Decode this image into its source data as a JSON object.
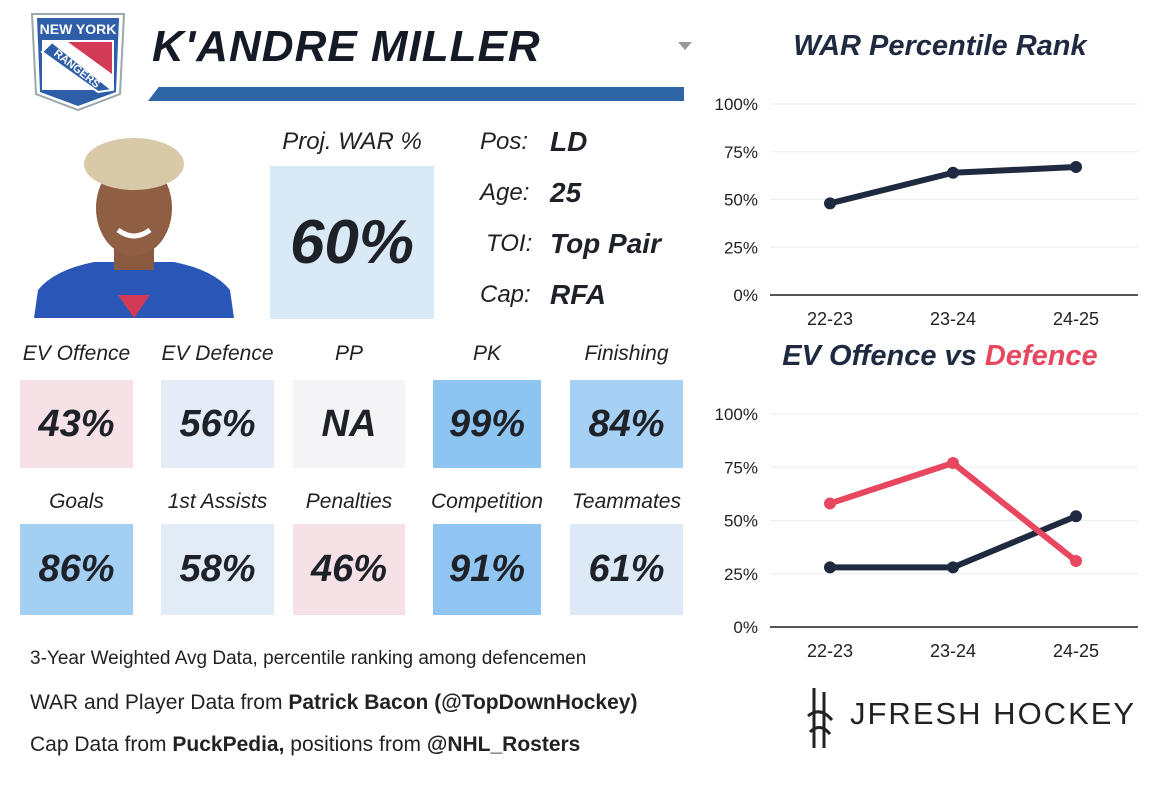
{
  "team_logo": {
    "line1": "NEW YORK",
    "line2": "RANGERS"
  },
  "player": {
    "name": "K'ANDRE MILLER"
  },
  "proj_war": {
    "label": "Proj. WAR %",
    "value": "60%"
  },
  "info": [
    {
      "label": "Pos:",
      "value": "LD"
    },
    {
      "label": "Age:",
      "value": "25"
    },
    {
      "label": "TOI:",
      "value": "Top Pair"
    },
    {
      "label": "Cap:",
      "value": "RFA"
    }
  ],
  "tiles": [
    {
      "label": "EV Offence",
      "value": "43%",
      "color": "#f6e2e6"
    },
    {
      "label": "EV Defence",
      "value": "56%",
      "color": "#e4edf7"
    },
    {
      "label": "PP",
      "value": "NA",
      "color": "#f4f4f6"
    },
    {
      "label": "PK",
      "value": "99%",
      "color": "#8ec4f0"
    },
    {
      "label": "Finishing",
      "value": "84%",
      "color": "#a7d1f4"
    },
    {
      "label": "Goals",
      "value": "86%",
      "color": "#a3cff3"
    },
    {
      "label": "1st Assists",
      "value": "58%",
      "color": "#e2ecf7"
    },
    {
      "label": "Penalties",
      "value": "46%",
      "color": "#f6e2e6"
    },
    {
      "label": "Competition",
      "value": "91%",
      "color": "#8fc5f0"
    },
    {
      "label": "Teammates",
      "value": "61%",
      "color": "#dde9f6"
    }
  ],
  "footer": {
    "line1": "3-Year Weighted Avg Data, percentile ranking among defencemen",
    "line2_pre": "WAR and Player Data from ",
    "line2_bold": "Patrick Bacon (@TopDownHockey)",
    "line3_pre": "Cap Data from ",
    "line3_bold": "PuckPedia,",
    "line3_mid": " positions from ",
    "line3_bold2": "@NHL_Rosters"
  },
  "brand": "JFRESH HOCKEY",
  "chart_data": [
    {
      "type": "line",
      "title": "WAR Percentile Rank",
      "categories": [
        "22-23",
        "23-24",
        "24-25"
      ],
      "series": [
        {
          "name": "WAR",
          "values": [
            48,
            64,
            67
          ],
          "color": "#1f2a40"
        }
      ],
      "ylim": [
        0,
        100
      ],
      "yticks": [
        "0%",
        "25%",
        "50%",
        "75%",
        "100%"
      ],
      "grid": true
    },
    {
      "type": "line",
      "title": "EV Offence vs Defence",
      "title_part1": "EV Offence vs ",
      "title_part2": "Defence",
      "categories": [
        "22-23",
        "23-24",
        "24-25"
      ],
      "series": [
        {
          "name": "EV Offence",
          "values": [
            28,
            28,
            52
          ],
          "color": "#1f2a40"
        },
        {
          "name": "EV Defence",
          "values": [
            58,
            77,
            31
          ],
          "color": "#e8485f"
        }
      ],
      "ylim": [
        0,
        100
      ],
      "yticks": [
        "0%",
        "25%",
        "50%",
        "75%",
        "100%"
      ],
      "grid": true
    }
  ]
}
